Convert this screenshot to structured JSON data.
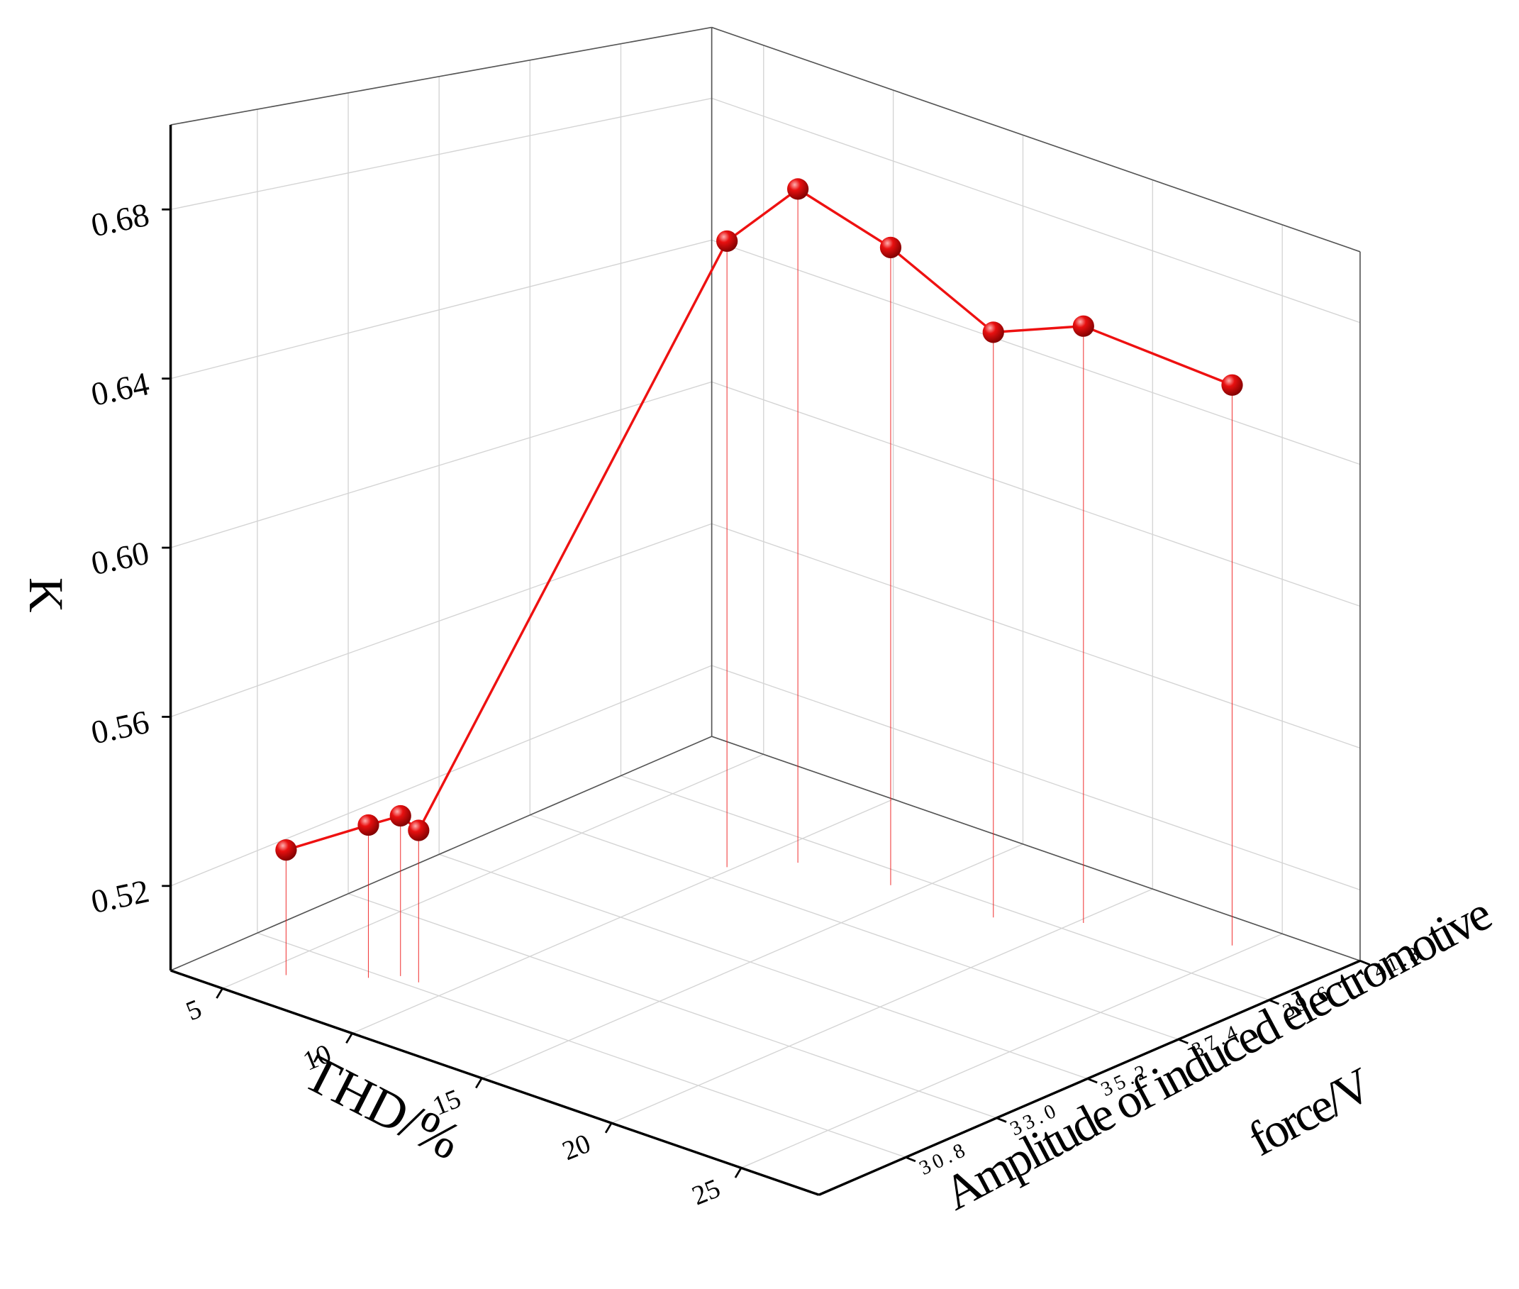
{
  "chart_data": {
    "type": "line3d",
    "x_label": "THD/%",
    "y_label": [
      "Amplitude of induced electromotive",
      "force/V"
    ],
    "z_label": "K",
    "color": "#ee1111",
    "x": [
      5.7,
      7.6,
      8.2,
      8.9,
      9.8,
      11.1,
      14.2,
      18.0,
      20.2,
      24.5
    ],
    "y": [
      29.8,
      30.6,
      31.0,
      31.0,
      37.9,
      38.8,
      39.1,
      39.2,
      40.0,
      40.9
    ],
    "z": [
      0.53,
      0.537,
      0.539,
      0.537,
      0.667,
      0.682,
      0.673,
      0.659,
      0.664,
      0.656
    ],
    "xlim": [
      3,
      28
    ],
    "ylim": [
      28.7,
      41.8
    ],
    "zlim": [
      0.5,
      0.7
    ],
    "xticks": [
      5,
      10,
      15,
      20,
      25
    ],
    "yticks": [
      30.8,
      {
        "value": 33,
        "label": "33.0"
      },
      35.2,
      37.4,
      39.6,
      41.8
    ],
    "zticks": [
      0.52,
      0.56,
      {
        "value": 0.6,
        "label": "0.60"
      },
      0.64,
      0.68
    ],
    "grid": true
  }
}
